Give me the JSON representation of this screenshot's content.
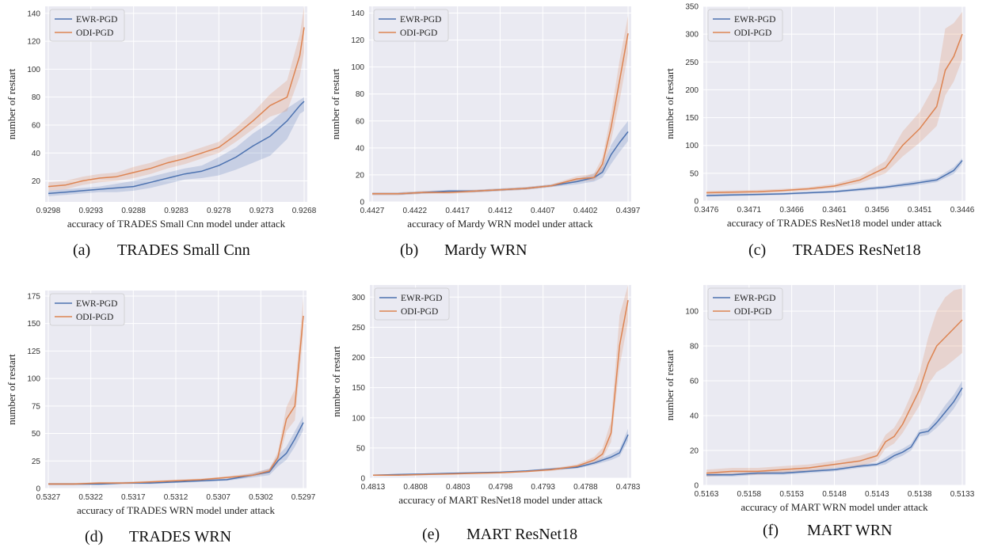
{
  "chart_data": [
    {
      "type": "line",
      "caption_letter": "(a)",
      "caption_title": "TRADES Small Cnn",
      "xlabel": "accuracy of TRADES Small Cnn model under attack",
      "ylabel": "number of restart",
      "xlim": [
        0.9298,
        0.9268
      ],
      "x_ticks": [
        0.9298,
        0.9293,
        0.9288,
        0.9283,
        0.9278,
        0.9273,
        0.9268
      ],
      "ylim": [
        5,
        145
      ],
      "y_ticks": [
        20,
        40,
        60,
        80,
        100,
        120,
        140
      ],
      "legend_position": "top-left",
      "grid": true,
      "series": [
        {
          "name": "EWR-PGD",
          "color": "#4c72b0",
          "x": [
            0.9298,
            0.9296,
            0.9294,
            0.9292,
            0.929,
            0.9288,
            0.9286,
            0.9284,
            0.9282,
            0.928,
            0.9278,
            0.9276,
            0.9274,
            0.9272,
            0.927,
            0.92685,
            0.9268
          ],
          "y": [
            11,
            12,
            13,
            14,
            15,
            16,
            19,
            22,
            25,
            27,
            31,
            37,
            45,
            52,
            63,
            74,
            77
          ],
          "y_lower": [
            9,
            10,
            11,
            12,
            12,
            13,
            15,
            18,
            21,
            22,
            24,
            28,
            33,
            38,
            50,
            68,
            70
          ],
          "y_upper": [
            13,
            14,
            15,
            16,
            18,
            20,
            23,
            26,
            29,
            31,
            37,
            44,
            54,
            62,
            72,
            78,
            80
          ]
        },
        {
          "name": "ODI-PGD",
          "color": "#dd8452",
          "x": [
            0.9298,
            0.9296,
            0.9294,
            0.9292,
            0.929,
            0.9288,
            0.9286,
            0.9284,
            0.9282,
            0.928,
            0.9278,
            0.9276,
            0.9274,
            0.9272,
            0.927,
            0.92685,
            0.9268
          ],
          "y": [
            16,
            17,
            20,
            22,
            23,
            26,
            29,
            33,
            36,
            40,
            44,
            53,
            63,
            74,
            80,
            110,
            130
          ],
          "y_lower": [
            13,
            14,
            17,
            19,
            20,
            22,
            25,
            29,
            32,
            36,
            40,
            48,
            57,
            66,
            70,
            95,
            112
          ],
          "y_upper": [
            19,
            20,
            23,
            25,
            26,
            30,
            33,
            37,
            40,
            44,
            48,
            58,
            69,
            82,
            92,
            125,
            145
          ]
        }
      ]
    },
    {
      "type": "line",
      "caption_letter": "(b)",
      "caption_title": "Mardy WRN",
      "xlabel": "accuracy of Mardy WRN model under attack",
      "ylabel": "number of restart",
      "xlim": [
        0.4427,
        0.4397
      ],
      "x_ticks": [
        0.4427,
        0.4422,
        0.4417,
        0.4412,
        0.4407,
        0.4402,
        0.4397
      ],
      "ylim": [
        0,
        145
      ],
      "y_ticks": [
        0,
        20,
        40,
        60,
        80,
        100,
        120,
        140
      ],
      "legend_position": "top-left",
      "grid": true,
      "series": [
        {
          "name": "EWR-PGD",
          "color": "#4c72b0",
          "x": [
            0.4427,
            0.4424,
            0.4421,
            0.4418,
            0.4415,
            0.4412,
            0.4409,
            0.4406,
            0.4403,
            0.4401,
            0.44,
            0.4399,
            0.4398,
            0.4397
          ],
          "y": [
            6,
            6,
            7,
            8,
            8,
            9,
            10,
            12,
            15,
            18,
            22,
            35,
            44,
            52
          ],
          "y_lower": [
            5,
            5,
            6,
            7,
            7,
            8,
            9,
            11,
            13,
            15,
            18,
            28,
            37,
            45
          ],
          "y_upper": [
            7,
            7,
            8,
            9,
            9,
            10,
            11,
            13,
            17,
            21,
            26,
            42,
            52,
            60
          ]
        },
        {
          "name": "ODI-PGD",
          "color": "#dd8452",
          "x": [
            0.4427,
            0.4424,
            0.4421,
            0.4418,
            0.4415,
            0.4412,
            0.4409,
            0.4406,
            0.4403,
            0.4401,
            0.44,
            0.4399,
            0.4398,
            0.4397
          ],
          "y": [
            6,
            6,
            7,
            7,
            8,
            9,
            10,
            12,
            17,
            18,
            28,
            55,
            90,
            125
          ],
          "y_lower": [
            5,
            5,
            6,
            6,
            7,
            8,
            9,
            11,
            15,
            16,
            22,
            45,
            75,
            110
          ],
          "y_upper": [
            7,
            7,
            8,
            8,
            9,
            10,
            11,
            13,
            19,
            21,
            33,
            65,
            105,
            138
          ]
        }
      ]
    },
    {
      "type": "line",
      "caption_letter": "(c)",
      "caption_title": "TRADES ResNet18",
      "xlabel": "accuracy of TRADES ResNet18 model under attack",
      "ylabel": "number of restart",
      "xlim": [
        0.3476,
        0.3446
      ],
      "x_ticks": [
        0.3476,
        0.3471,
        0.3466,
        0.3461,
        0.3456,
        0.3451,
        0.3446
      ],
      "ylim": [
        0,
        350
      ],
      "y_ticks": [
        0,
        50,
        100,
        150,
        200,
        250,
        300,
        350
      ],
      "legend_position": "top-left",
      "grid": true,
      "series": [
        {
          "name": "EWR-PGD",
          "color": "#4c72b0",
          "x": [
            0.3476,
            0.3473,
            0.347,
            0.3467,
            0.3464,
            0.3461,
            0.3458,
            0.3455,
            0.3452,
            0.3449,
            0.3447,
            0.3446
          ],
          "y": [
            10,
            11,
            12,
            13,
            15,
            17,
            21,
            25,
            31,
            38,
            55,
            73
          ],
          "y_lower": [
            8,
            9,
            10,
            11,
            13,
            15,
            18,
            22,
            27,
            34,
            49,
            67
          ],
          "y_upper": [
            12,
            13,
            14,
            15,
            17,
            19,
            24,
            28,
            35,
            42,
            61,
            77
          ]
        },
        {
          "name": "ODI-PGD",
          "color": "#dd8452",
          "x": [
            0.3476,
            0.3473,
            0.347,
            0.3467,
            0.3464,
            0.3461,
            0.3458,
            0.3455,
            0.3453,
            0.3451,
            0.3449,
            0.3448,
            0.3447,
            0.3446
          ],
          "y": [
            15,
            16,
            17,
            19,
            22,
            27,
            38,
            60,
            100,
            130,
            170,
            235,
            260,
            300
          ],
          "y_lower": [
            12,
            13,
            14,
            16,
            19,
            23,
            32,
            50,
            80,
            105,
            135,
            190,
            215,
            255
          ],
          "y_upper": [
            18,
            19,
            20,
            22,
            25,
            31,
            44,
            72,
            125,
            160,
            215,
            310,
            320,
            340
          ]
        }
      ]
    },
    {
      "type": "line",
      "caption_letter": "(d)",
      "caption_title": "TRADES WRN",
      "xlabel": "accuracy of TRADES WRN model under attack",
      "ylabel": "number of restart",
      "xlim": [
        0.5327,
        0.5297
      ],
      "x_ticks": [
        0.5327,
        0.5322,
        0.5317,
        0.5312,
        0.5307,
        0.5302,
        0.5297
      ],
      "ylim": [
        0,
        180
      ],
      "y_ticks": [
        0,
        25,
        50,
        75,
        100,
        125,
        150,
        175
      ],
      "legend_position": "top-left",
      "grid": true,
      "series": [
        {
          "name": "EWR-PGD",
          "color": "#4c72b0",
          "x": [
            0.5327,
            0.5324,
            0.5321,
            0.5318,
            0.5315,
            0.5312,
            0.5309,
            0.5306,
            0.5303,
            0.5301,
            0.53,
            0.5299,
            0.5298,
            0.5297
          ],
          "y": [
            4,
            4,
            4,
            5,
            5,
            6,
            7,
            8,
            12,
            15,
            25,
            32,
            45,
            60
          ],
          "y_lower": [
            3,
            3,
            3,
            4,
            4,
            5,
            6,
            7,
            10,
            12,
            20,
            26,
            38,
            53
          ],
          "y_upper": [
            5,
            5,
            5,
            6,
            6,
            7,
            8,
            9,
            14,
            18,
            30,
            38,
            52,
            66
          ]
        },
        {
          "name": "ODI-PGD",
          "color": "#dd8452",
          "x": [
            0.5327,
            0.5324,
            0.5321,
            0.5318,
            0.5315,
            0.5312,
            0.5309,
            0.5306,
            0.5303,
            0.5301,
            0.53,
            0.5299,
            0.5298,
            0.5297
          ],
          "y": [
            4,
            4,
            5,
            5,
            6,
            7,
            8,
            10,
            12,
            16,
            28,
            63,
            75,
            157
          ],
          "y_lower": [
            3,
            3,
            4,
            4,
            5,
            6,
            7,
            9,
            11,
            14,
            23,
            52,
            62,
            140
          ],
          "y_upper": [
            5,
            5,
            6,
            6,
            7,
            8,
            9,
            11,
            14,
            18,
            33,
            74,
            90,
            173
          ]
        }
      ]
    },
    {
      "type": "line",
      "caption_letter": "(e)",
      "caption_title": "MART ResNet18",
      "xlabel": "accuracy of MART ResNet18 model under attack",
      "ylabel": "number of restart",
      "xlim": [
        0.4813,
        0.4783
      ],
      "x_ticks": [
        0.4813,
        0.4808,
        0.4803,
        0.4798,
        0.4793,
        0.4788,
        0.4783
      ],
      "ylim": [
        0,
        320
      ],
      "y_ticks": [
        0,
        50,
        100,
        150,
        200,
        250,
        300
      ],
      "legend_position": "top-left",
      "grid": true,
      "series": [
        {
          "name": "EWR-PGD",
          "color": "#4c72b0",
          "x": [
            0.4813,
            0.481,
            0.4807,
            0.4804,
            0.4801,
            0.4798,
            0.4795,
            0.4792,
            0.4789,
            0.4787,
            0.4785,
            0.4784,
            0.4783
          ],
          "y": [
            5,
            6,
            7,
            8,
            9,
            10,
            12,
            15,
            18,
            25,
            35,
            42,
            72
          ],
          "y_lower": [
            4,
            5,
            6,
            7,
            8,
            9,
            11,
            13,
            16,
            22,
            30,
            36,
            62
          ],
          "y_upper": [
            6,
            7,
            8,
            9,
            10,
            11,
            13,
            17,
            20,
            28,
            40,
            48,
            82
          ]
        },
        {
          "name": "ODI-PGD",
          "color": "#dd8452",
          "x": [
            0.4813,
            0.481,
            0.4807,
            0.4804,
            0.4801,
            0.4798,
            0.4795,
            0.4792,
            0.4789,
            0.4787,
            0.4786,
            0.4785,
            0.4784,
            0.4783
          ],
          "y": [
            5,
            5,
            6,
            7,
            8,
            9,
            11,
            14,
            20,
            30,
            40,
            75,
            220,
            295
          ],
          "y_lower": [
            4,
            4,
            5,
            6,
            7,
            8,
            10,
            12,
            17,
            25,
            33,
            60,
            185,
            260
          ],
          "y_upper": [
            6,
            6,
            7,
            8,
            9,
            10,
            12,
            16,
            23,
            35,
            50,
            95,
            270,
            320
          ]
        }
      ]
    },
    {
      "type": "line",
      "caption_letter": "(f)",
      "caption_title": "MART WRN",
      "xlabel": "accuracy of MART WRN model under attack",
      "ylabel": "number of restart",
      "xlim": [
        0.5163,
        0.5133
      ],
      "x_ticks": [
        0.5163,
        0.5158,
        0.5153,
        0.5148,
        0.5143,
        0.5138,
        0.5133
      ],
      "ylim": [
        0,
        115
      ],
      "y_ticks": [
        0,
        20,
        40,
        60,
        80,
        100
      ],
      "legend_position": "top-left",
      "grid": true,
      "series": [
        {
          "name": "EWR-PGD",
          "color": "#4c72b0",
          "x": [
            0.5163,
            0.516,
            0.5157,
            0.5154,
            0.5151,
            0.5148,
            0.5145,
            0.5143,
            0.5142,
            0.5141,
            0.514,
            0.5139,
            0.5138,
            0.5137,
            0.5136,
            0.5135,
            0.5134,
            0.5133
          ],
          "y": [
            6,
            6,
            7,
            7,
            8,
            9,
            11,
            12,
            14,
            17,
            19,
            22,
            30,
            31,
            36,
            42,
            48,
            56
          ],
          "y_lower": [
            5,
            5,
            6,
            6,
            7,
            8,
            10,
            11,
            12,
            15,
            17,
            20,
            28,
            29,
            33,
            38,
            44,
            52
          ],
          "y_upper": [
            7,
            7,
            8,
            8,
            9,
            10,
            12,
            13,
            16,
            19,
            21,
            24,
            32,
            33,
            39,
            46,
            52,
            60
          ]
        },
        {
          "name": "ODI-PGD",
          "color": "#dd8452",
          "x": [
            0.5163,
            0.516,
            0.5157,
            0.5154,
            0.5151,
            0.5148,
            0.5145,
            0.5143,
            0.5142,
            0.5141,
            0.514,
            0.5139,
            0.5138,
            0.5137,
            0.5136,
            0.5135,
            0.5134,
            0.5133
          ],
          "y": [
            7,
            8,
            8,
            9,
            10,
            12,
            14,
            17,
            25,
            28,
            35,
            45,
            55,
            70,
            80,
            85,
            90,
            95
          ],
          "y_lower": [
            5,
            6,
            6,
            7,
            8,
            10,
            11,
            14,
            21,
            24,
            30,
            38,
            46,
            58,
            65,
            68,
            72,
            76
          ],
          "y_upper": [
            9,
            10,
            10,
            11,
            12,
            14,
            17,
            20,
            29,
            33,
            41,
            52,
            65,
            85,
            100,
            108,
            112,
            113
          ]
        }
      ]
    }
  ]
}
